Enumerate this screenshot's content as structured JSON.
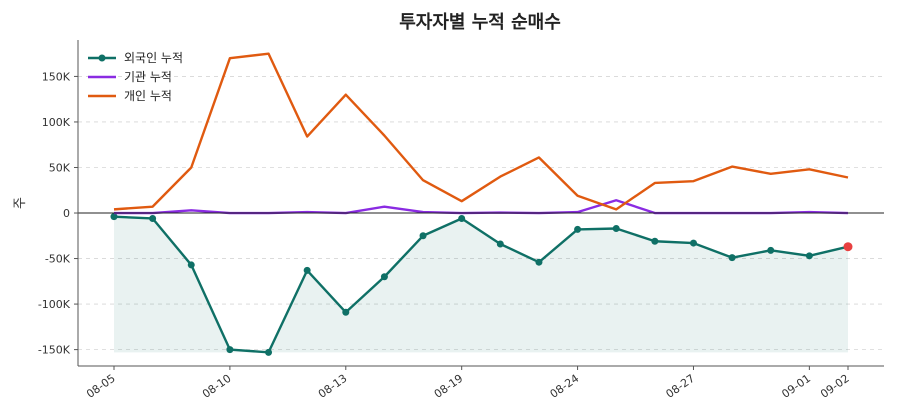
{
  "chart_data": {
    "type": "line",
    "title": "투자자별 누적 순매수",
    "ylabel": "주",
    "xlabel": "",
    "ylim": [
      -168000,
      190000
    ],
    "yticks": [
      150000,
      100000,
      50000,
      0,
      -50000,
      -100000,
      -150000
    ],
    "ytick_labels": [
      "150K",
      "100K",
      "50K",
      "0",
      "-50K",
      "-100K",
      "-150K"
    ],
    "x": [
      "08-05",
      "08-06",
      "08-09",
      "08-10",
      "08-11",
      "08-12",
      "08-13",
      "08-16",
      "08-17",
      "08-19",
      "08-20",
      "08-23",
      "08-24",
      "08-25",
      "08-26",
      "08-27",
      "08-30",
      "08-31",
      "09-01",
      "09-02"
    ],
    "xtick_labels": [
      "08-05",
      "08-10",
      "08-13",
      "08-19",
      "08-24",
      "08-27",
      "09-01",
      "09-02"
    ],
    "legend_position": "top-left",
    "grid": "horizontal-dashed",
    "series": [
      {
        "name": "외국인 누적",
        "color": "#0f7066",
        "markers": true,
        "fill": true,
        "values": [
          -4000,
          -6000,
          -57000,
          -150000,
          -153000,
          -63000,
          -109000,
          -70000,
          -25000,
          -6000,
          -34000,
          -54000,
          -18000,
          -17000,
          -31000,
          -33000,
          -49000,
          -41000,
          -47000,
          -37000
        ]
      },
      {
        "name": "기관 누적",
        "color": "#8a2be2",
        "markers": false,
        "fill": false,
        "values": [
          0,
          0,
          3000,
          0,
          0,
          1000,
          0,
          7000,
          1000,
          0,
          500,
          0,
          1000,
          14000,
          0,
          0,
          0,
          0,
          1000,
          0
        ]
      },
      {
        "name": "개인 누적",
        "color": "#e05a10",
        "markers": false,
        "fill": false,
        "values": [
          4000,
          7000,
          50000,
          170000,
          175000,
          84000,
          130000,
          85000,
          36000,
          13000,
          40000,
          61000,
          19000,
          4000,
          33000,
          35000,
          51000,
          43000,
          48000,
          39000
        ]
      }
    ],
    "highlight_last_point_color": "#e84040"
  }
}
